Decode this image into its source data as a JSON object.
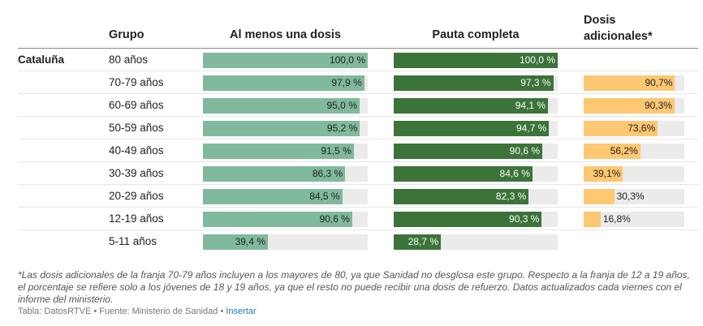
{
  "chart_data": {
    "type": "table",
    "title": "",
    "columns": [
      "Grupo",
      "Al menos una dosis",
      "Pauta completa",
      "Dosis adicionales*"
    ],
    "region": "Cataluña",
    "series_colors": {
      "al_menos_una_dosis": "#80b99c",
      "pauta_completa": "#3b7339",
      "dosis_adicionales": "#fec772",
      "track": "#ebebeb"
    },
    "rows": [
      {
        "region": "Cataluña",
        "grupo": "80 años",
        "al_menos_una_dosis": 100.0,
        "al_menos_label": "100,0 %",
        "pauta_completa": 100.0,
        "pauta_label": "100,0 %",
        "dosis_adicionales": null,
        "adicionales_label": ""
      },
      {
        "region": "",
        "grupo": "70-79 años",
        "al_menos_una_dosis": 97.9,
        "al_menos_label": "97,9 %",
        "pauta_completa": 97.3,
        "pauta_label": "97,3 %",
        "dosis_adicionales": 90.7,
        "adicionales_label": "90,7%"
      },
      {
        "region": "",
        "grupo": "60-69 años",
        "al_menos_una_dosis": 95.0,
        "al_menos_label": "95,0 %",
        "pauta_completa": 94.1,
        "pauta_label": "94,1 %",
        "dosis_adicionales": 90.3,
        "adicionales_label": "90,3%"
      },
      {
        "region": "",
        "grupo": "50-59 años",
        "al_menos_una_dosis": 95.2,
        "al_menos_label": "95,2 %",
        "pauta_completa": 94.7,
        "pauta_label": "94,7 %",
        "dosis_adicionales": 73.6,
        "adicionales_label": "73,6%"
      },
      {
        "region": "",
        "grupo": "40-49 años",
        "al_menos_una_dosis": 91.5,
        "al_menos_label": "91,5 %",
        "pauta_completa": 90.6,
        "pauta_label": "90,6 %",
        "dosis_adicionales": 56.2,
        "adicionales_label": "56,2%"
      },
      {
        "region": "",
        "grupo": "30-39 años",
        "al_menos_una_dosis": 86.3,
        "al_menos_label": "86,3 %",
        "pauta_completa": 84.6,
        "pauta_label": "84,6 %",
        "dosis_adicionales": 39.1,
        "adicionales_label": "39,1%"
      },
      {
        "region": "",
        "grupo": "20-29 años",
        "al_menos_una_dosis": 84.5,
        "al_menos_label": "84,5 %",
        "pauta_completa": 82.3,
        "pauta_label": "82,3 %",
        "dosis_adicionales": 30.3,
        "adicionales_label": "30,3%"
      },
      {
        "region": "",
        "grupo": "12-19 años",
        "al_menos_una_dosis": 90.6,
        "al_menos_label": "90,6 %",
        "pauta_completa": 90.3,
        "pauta_label": "90,3 %",
        "dosis_adicionales": 16.8,
        "adicionales_label": "16,8%"
      },
      {
        "region": "",
        "grupo": "5-11 años",
        "al_menos_una_dosis": 39.4,
        "al_menos_label": "39,4 %",
        "pauta_completa": 28.7,
        "pauta_label": "28,7 %",
        "dosis_adicionales": null,
        "adicionales_label": ""
      }
    ],
    "xlim": [
      0,
      100
    ]
  },
  "headers": {
    "grupo": "Grupo",
    "al_menos": "Al menos una dosis",
    "pauta": "Pauta completa",
    "adicionales_line1": "Dosis",
    "adicionales_line2": "adicionales*"
  },
  "footnote": "*Las dosis adicionales de la franja 70-79 años incluyen a los mayores de 80, ya que Sanidad no desglosa este grupo. Respecto a la franja de 12 a 19 años, el porcentaje se refiere solo a los jóvenes de 18 y 19 años, ya que el resto no puede recibir una dosis de refuerzo. Datos actualizados cada viernes con el informe del ministerio.",
  "source": {
    "text": "Tabla: DatosRTVE • Fuente: Ministerio de Sanidad • ",
    "link_label": "Insertar"
  }
}
